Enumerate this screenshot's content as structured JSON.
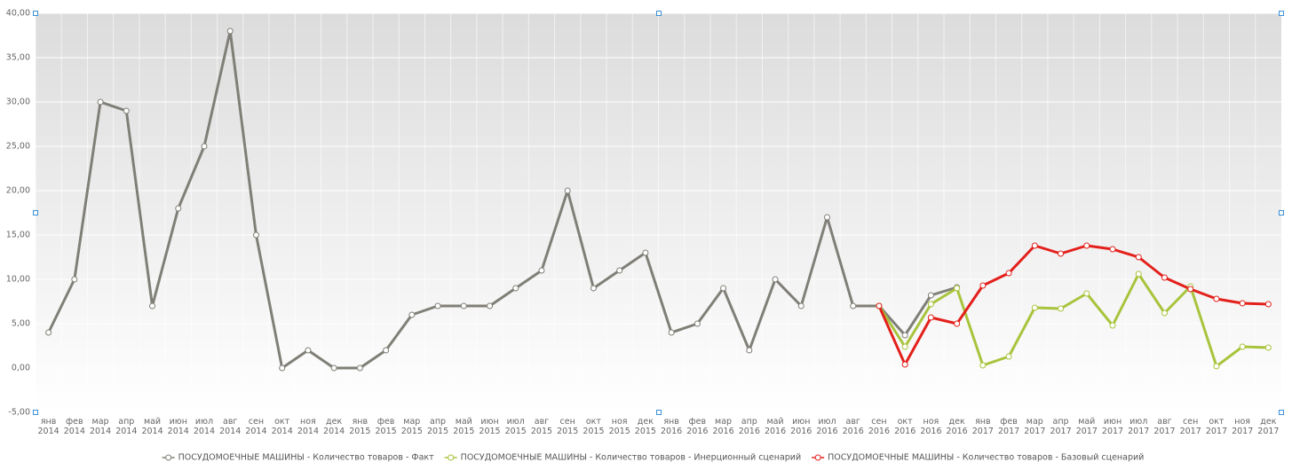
{
  "chart_data": {
    "type": "line",
    "categories": [
      "янв 2014",
      "фев 2014",
      "мар 2014",
      "апр 2014",
      "май 2014",
      "июн 2014",
      "июл 2014",
      "авг 2014",
      "сен 2014",
      "окт 2014",
      "ноя 2014",
      "дек 2014",
      "янв 2015",
      "фев 2015",
      "мар 2015",
      "апр 2015",
      "май 2015",
      "июн 2015",
      "июл 2015",
      "авг 2015",
      "сен 2015",
      "окт 2015",
      "ноя 2015",
      "дек 2015",
      "янв 2016",
      "фев 2016",
      "мар 2016",
      "апр 2016",
      "май 2016",
      "июн 2016",
      "июл 2016",
      "авг 2016",
      "сен 2016",
      "окт 2016",
      "ноя 2016",
      "дек 2016",
      "янв 2017",
      "фев 2017",
      "мар 2017",
      "апр 2017",
      "май 2017",
      "июн 2017",
      "июл 2017",
      "авг 2017",
      "сен 2017",
      "окт 2017",
      "ноя 2017",
      "дек 2017"
    ],
    "series": [
      {
        "name": "ПОСУДОМОЕЧНЫЕ МАШИНЫ - Количество товаров - Факт",
        "color": "#807f77",
        "values": [
          4,
          10,
          30,
          29,
          7,
          18,
          25,
          38,
          15,
          0,
          2,
          0,
          0,
          2,
          6,
          7,
          7,
          7,
          9,
          11,
          20,
          9,
          11,
          13,
          4,
          5,
          9,
          2,
          10,
          7,
          17,
          7,
          7,
          3.7,
          8.2,
          9.1,
          null,
          null,
          null,
          null,
          null,
          null,
          null,
          null,
          null,
          null,
          null,
          null
        ]
      },
      {
        "name": "ПОСУДОМОЕЧНЫЕ МАШИНЫ - Количество товаров - Инерционный сценарий",
        "color": "#a8c43c",
        "values": [
          null,
          null,
          null,
          null,
          null,
          null,
          null,
          null,
          null,
          null,
          null,
          null,
          null,
          null,
          null,
          null,
          null,
          null,
          null,
          null,
          null,
          null,
          null,
          null,
          null,
          null,
          null,
          null,
          null,
          null,
          null,
          null,
          7,
          2.4,
          7.2,
          9.0,
          0.3,
          1.3,
          6.8,
          6.7,
          8.4,
          4.8,
          10.6,
          6.2,
          9.2,
          0.2,
          2.4,
          2.3
        ]
      },
      {
        "name": "ПОСУДОМОЕЧНЫЕ МАШИНЫ - Количество товаров - Базовый сценарий",
        "color": "#e3201b",
        "values": [
          null,
          null,
          null,
          null,
          null,
          null,
          null,
          null,
          null,
          null,
          null,
          null,
          null,
          null,
          null,
          null,
          null,
          null,
          null,
          null,
          null,
          null,
          null,
          null,
          null,
          null,
          null,
          null,
          null,
          null,
          null,
          null,
          7,
          0.4,
          5.7,
          5.0,
          9.3,
          10.7,
          13.8,
          12.9,
          13.8,
          13.4,
          12.5,
          10.2,
          8.9,
          7.8,
          7.3,
          7.2
        ]
      }
    ],
    "ylim": [
      -5,
      40
    ],
    "yticks": [
      {
        "value": -5,
        "label": "-5,00"
      },
      {
        "value": 0,
        "label": "0,00"
      },
      {
        "value": 5,
        "label": "5,00"
      },
      {
        "value": 10,
        "label": "10,00"
      },
      {
        "value": 15,
        "label": "15,00"
      },
      {
        "value": 20,
        "label": "20,00"
      },
      {
        "value": 25,
        "label": "25,00"
      },
      {
        "value": 30,
        "label": "30,00"
      },
      {
        "value": 35,
        "label": "35,00"
      },
      {
        "value": 40,
        "label": "40,00"
      }
    ],
    "grid": true,
    "legend": "bottom"
  }
}
